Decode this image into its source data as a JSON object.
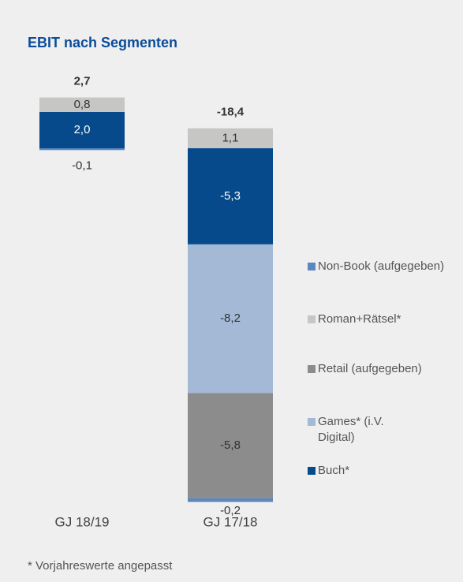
{
  "chart_data": {
    "type": "stacked_bar",
    "title": "EBIT nach Segmenten",
    "footnote": "* Vorjahreswerte angepasst",
    "categories": [
      "GJ 18/19",
      "GJ 17/18"
    ],
    "ylim": [
      -20,
      3
    ],
    "series": [
      {
        "name": "Buch*",
        "color": "#064a8c",
        "values": [
          2.0,
          -5.3
        ],
        "value_labels": [
          "2,0",
          "-5,3"
        ]
      },
      {
        "name": "Games* (i.V. Digital)",
        "color": "#a4b9d6",
        "values": [
          null,
          -8.2
        ],
        "value_labels": [
          null,
          "-8,2"
        ]
      },
      {
        "name": "Retail (aufgegeben)",
        "color": "#8c8c8c",
        "values": [
          null,
          -5.8
        ],
        "value_labels": [
          null,
          "-5,8"
        ]
      },
      {
        "name": "Roman+Rätsel*",
        "color": "#c6c6c4",
        "values": [
          0.8,
          1.1
        ],
        "value_labels": [
          "0,8",
          "1,1"
        ]
      },
      {
        "name": "Non-Book (aufgegeben)",
        "color": "#5b87c0",
        "values": [
          -0.1,
          -0.2
        ],
        "value_labels": [
          "-0,1",
          "-0,2"
        ]
      }
    ],
    "totals": {
      "values": [
        2.7,
        -18.4
      ],
      "value_labels": [
        "2,7",
        "-18,4"
      ]
    }
  }
}
